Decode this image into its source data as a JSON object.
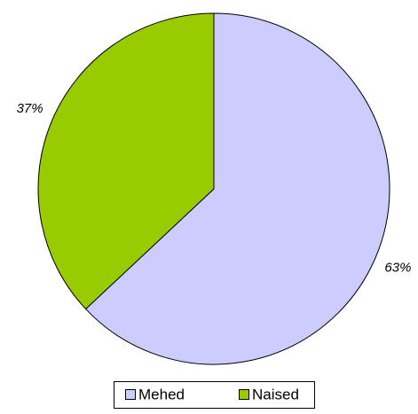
{
  "chart_data": {
    "type": "pie",
    "categories": [
      "Mehed",
      "Naised"
    ],
    "values": [
      63,
      37
    ],
    "value_labels": [
      "63%",
      "37%"
    ],
    "colors": [
      "#ccccff",
      "#99cc00"
    ],
    "legend": "bottom"
  }
}
